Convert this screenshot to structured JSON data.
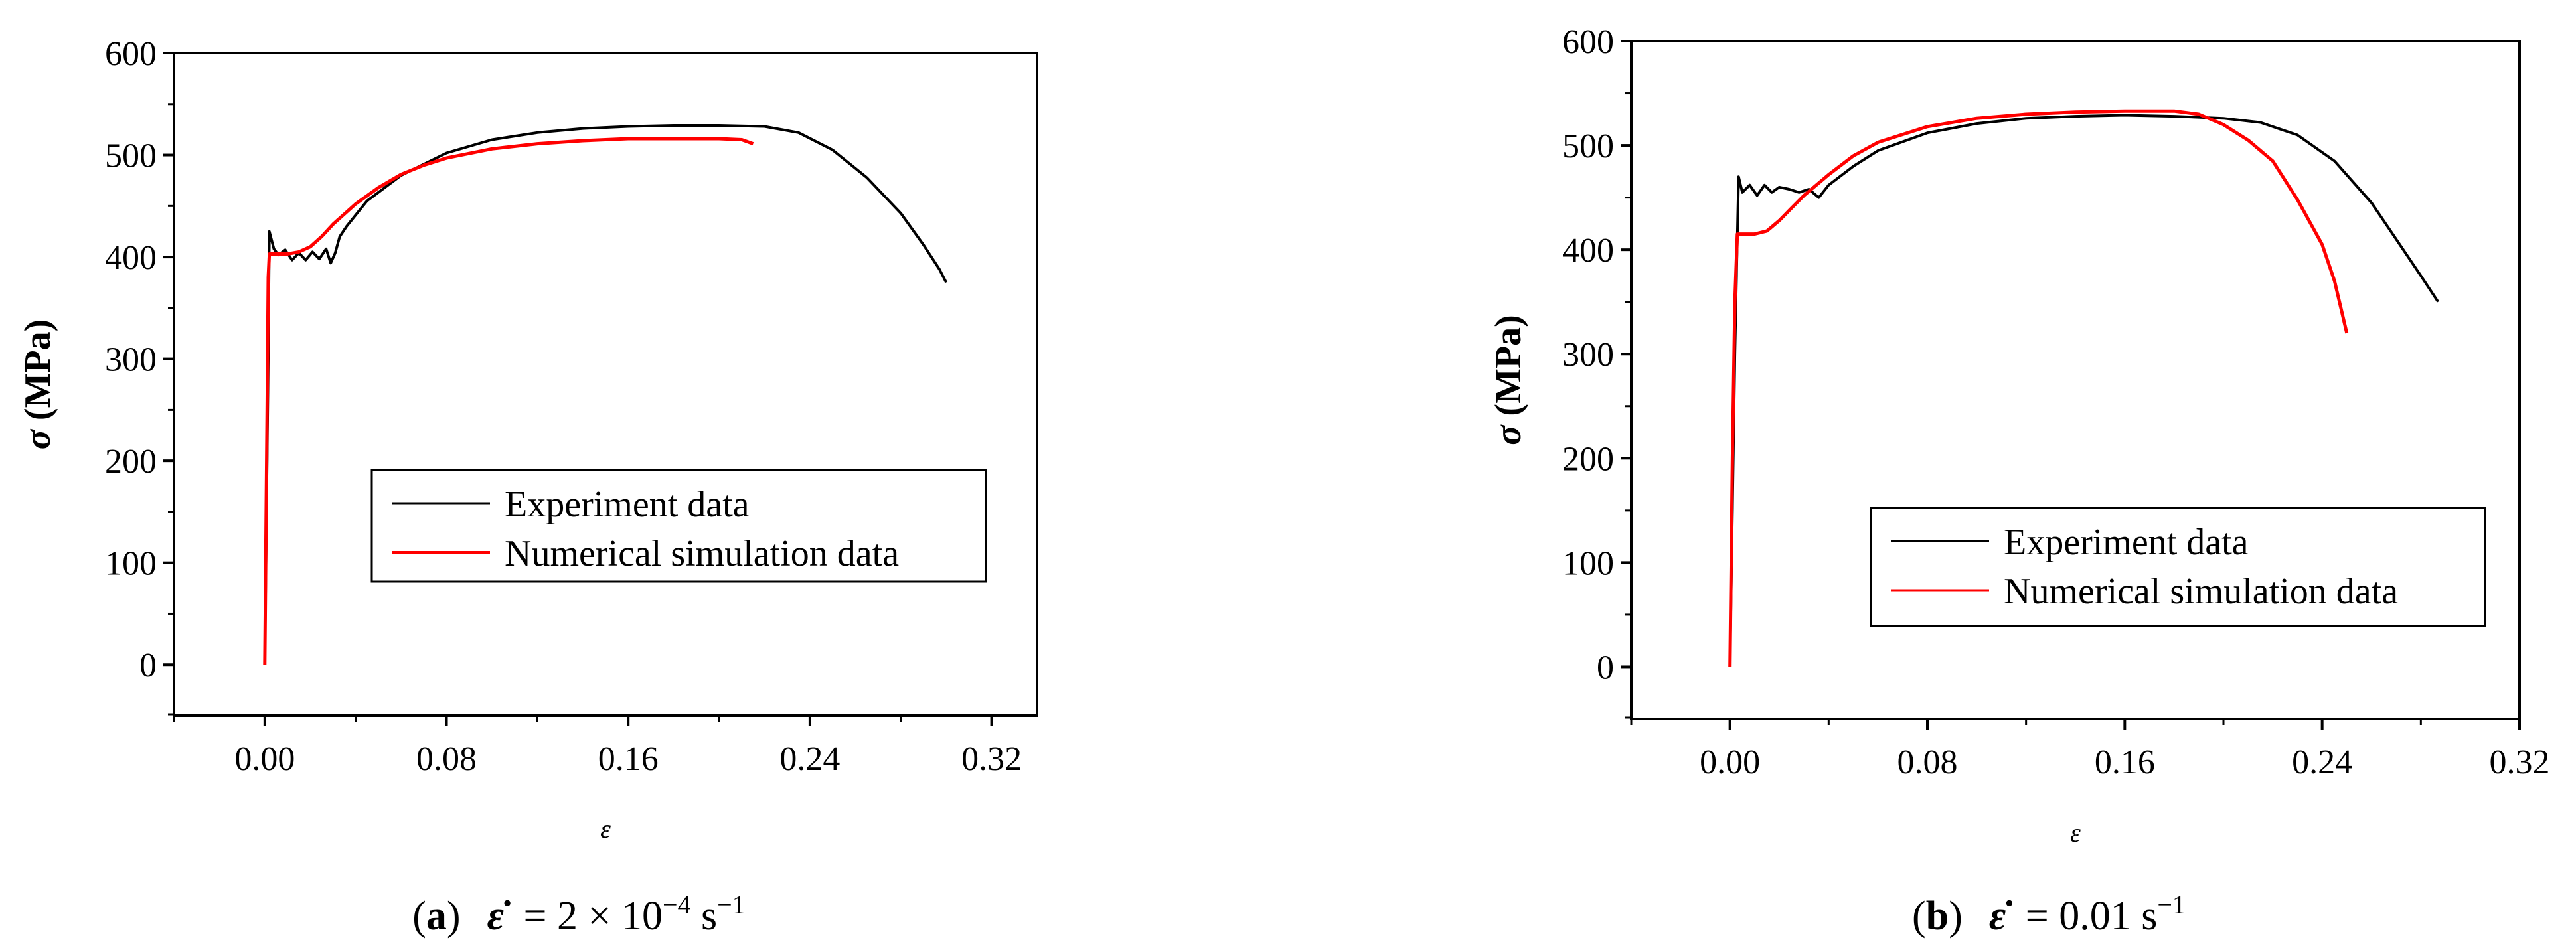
{
  "chart_data": [
    {
      "type": "line",
      "panel": "a",
      "caption": {
        "paren_open": "(",
        "letter": "a",
        "paren_close": ")",
        "symbol": "ε̇",
        "text": " = 2 × 10",
        "exponent": "−4",
        "unit": " s",
        "unit_exponent": "−1"
      },
      "title": "",
      "xlabel": "ε",
      "ylabel_symbol": "σ",
      "ylabel": "(MPa)",
      "xlim": [
        -0.04,
        0.34
      ],
      "ylim": [
        -50,
        600
      ],
      "x_ticks": [
        0.0,
        0.08,
        0.16,
        0.24,
        0.32
      ],
      "x_tick_labels": [
        "0.00",
        "0.08",
        "0.16",
        "0.24",
        "0.32"
      ],
      "y_ticks": [
        0,
        100,
        200,
        300,
        400,
        500,
        600
      ],
      "y_tick_labels": [
        "0",
        "100",
        "200",
        "300",
        "400",
        "500",
        "600"
      ],
      "legend_position": "center-right",
      "series": [
        {
          "name": "Experiment data",
          "color": "#000000",
          "x": [
            0.0,
            0.0015,
            0.002,
            0.004,
            0.006,
            0.009,
            0.012,
            0.015,
            0.018,
            0.021,
            0.024,
            0.027,
            0.029,
            0.031,
            0.033,
            0.036,
            0.045,
            0.06,
            0.08,
            0.1,
            0.12,
            0.14,
            0.16,
            0.18,
            0.2,
            0.22,
            0.235,
            0.25,
            0.265,
            0.28,
            0.29,
            0.297,
            0.3
          ],
          "y": [
            0,
            300,
            425,
            408,
            402,
            407,
            397,
            404,
            397,
            405,
            398,
            408,
            394,
            404,
            420,
            430,
            455,
            480,
            502,
            515,
            522,
            526,
            528,
            529,
            529,
            528,
            522,
            505,
            478,
            443,
            412,
            388,
            375
          ]
        },
        {
          "name": "Numerical simulation data",
          "color": "#ff0000",
          "x": [
            0.0,
            0.001,
            0.0015,
            0.002,
            0.005,
            0.01,
            0.015,
            0.02,
            0.025,
            0.03,
            0.04,
            0.05,
            0.06,
            0.07,
            0.08,
            0.1,
            0.12,
            0.14,
            0.16,
            0.18,
            0.2,
            0.21,
            0.215
          ],
          "y": [
            0,
            250,
            380,
            403,
            403,
            403,
            405,
            410,
            420,
            432,
            452,
            468,
            481,
            490,
            497,
            506,
            511,
            514,
            516,
            516,
            516,
            515,
            511
          ]
        }
      ]
    },
    {
      "type": "line",
      "panel": "b",
      "caption": {
        "paren_open": "(",
        "letter": "b",
        "paren_close": ")",
        "symbol": "ε̇",
        "text": " = 0.01 s",
        "exponent": "",
        "unit": "",
        "unit_exponent": "−1"
      },
      "title": "",
      "xlabel": "ε",
      "ylabel_symbol": "σ",
      "ylabel": "(MPa)",
      "xlim": [
        -0.04,
        0.32
      ],
      "ylim": [
        -50,
        600
      ],
      "x_ticks": [
        0.0,
        0.08,
        0.16,
        0.24,
        0.32
      ],
      "x_tick_labels": [
        "0.00",
        "0.08",
        "0.16",
        "0.24",
        "0.32"
      ],
      "y_ticks": [
        0,
        100,
        200,
        300,
        400,
        500,
        600
      ],
      "y_tick_labels": [
        "0",
        "100",
        "200",
        "300",
        "400",
        "500",
        "600"
      ],
      "legend_position": "center-right",
      "series": [
        {
          "name": "Experiment data",
          "color": "#000000",
          "x": [
            0.0,
            0.002,
            0.0035,
            0.005,
            0.008,
            0.011,
            0.014,
            0.017,
            0.02,
            0.024,
            0.028,
            0.032,
            0.036,
            0.04,
            0.05,
            0.06,
            0.08,
            0.1,
            0.12,
            0.14,
            0.16,
            0.18,
            0.2,
            0.215,
            0.23,
            0.245,
            0.26,
            0.27,
            0.28,
            0.287
          ],
          "y": [
            0,
            300,
            470,
            455,
            462,
            452,
            462,
            455,
            460,
            458,
            455,
            458,
            450,
            462,
            480,
            495,
            512,
            521,
            526,
            528,
            529,
            528,
            526,
            522,
            510,
            485,
            445,
            410,
            375,
            350
          ]
        },
        {
          "name": "Numerical simulation data",
          "color": "#ff0000",
          "x": [
            0.0,
            0.001,
            0.002,
            0.003,
            0.006,
            0.01,
            0.015,
            0.02,
            0.025,
            0.03,
            0.04,
            0.05,
            0.06,
            0.08,
            0.1,
            0.12,
            0.14,
            0.16,
            0.18,
            0.19,
            0.2,
            0.21,
            0.22,
            0.23,
            0.24,
            0.245,
            0.25
          ],
          "y": [
            0,
            200,
            350,
            415,
            415,
            415,
            418,
            428,
            440,
            452,
            472,
            490,
            503,
            518,
            526,
            530,
            532,
            533,
            533,
            530,
            520,
            505,
            485,
            448,
            405,
            370,
            320
          ]
        }
      ]
    }
  ]
}
